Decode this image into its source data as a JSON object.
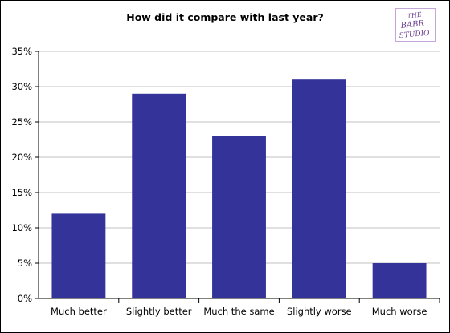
{
  "chart_data": {
    "type": "bar",
    "title": "How did it compare with last year?",
    "categories": [
      "Much better",
      "Slightly better",
      "Much the same",
      "Slightly worse",
      "Much worse"
    ],
    "values": [
      12,
      29,
      23,
      31,
      5
    ],
    "value_unit": "%",
    "ylim": [
      0,
      35
    ],
    "yticks": [
      "0%",
      "5%",
      "10%",
      "15%",
      "20%",
      "25%",
      "30%",
      "35%"
    ],
    "xlabel": "",
    "ylabel": "",
    "grid": true,
    "legend": "none",
    "bar_color": "#333399",
    "grid_color": "#c0c0c0"
  },
  "logo": {
    "icon": "studio-logo-icon",
    "lines": [
      "THE",
      "BABR",
      "STUDIO"
    ],
    "color": "#6a3d8f"
  }
}
